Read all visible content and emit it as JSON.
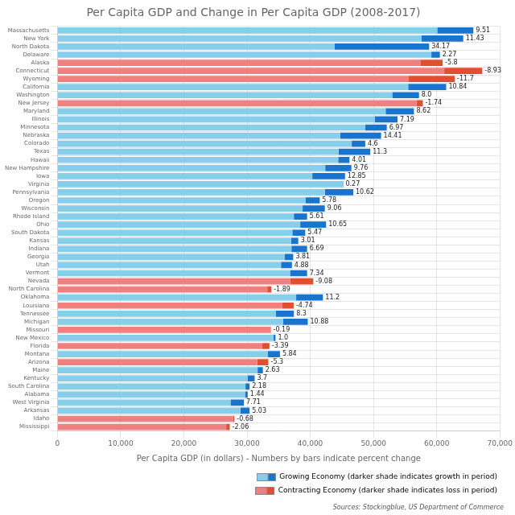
{
  "chart_data": {
    "type": "bar",
    "orientation": "horizontal",
    "stacked": true,
    "title": "Per Capita GDP and Change in Per Capita GDP (2008-2017)",
    "x_label": "Per Capita GDP (in dollars) - Numbers by bars indicate percent change",
    "source": "Sources: Stockingblue, US Department of Commerce",
    "categories": [
      "Massachusetts",
      "New York",
      "North Dakota",
      "Delaware",
      "Alaska",
      "Connecticut",
      "Wyoming",
      "California",
      "Washington",
      "New Jersey",
      "Maryland",
      "Illinois",
      "Minnesota",
      "Nebraska",
      "Colorado",
      "Texas",
      "Hawaii",
      "New Hampshire",
      "Iowa",
      "Virginia",
      "Pennsylvania",
      "Oregon",
      "Wisconsin",
      "Rhode Island",
      "Ohio",
      "South Dakota",
      "Kansas",
      "Indiana",
      "Georgia",
      "Utah",
      "Vermont",
      "Nevada",
      "North Carolina",
      "Oklahoma",
      "Louisiana",
      "Tennessee",
      "Michigan",
      "Missouri",
      "New Mexico",
      "Florida",
      "Montana",
      "Arizona",
      "Maine",
      "Kentucky",
      "South Carolina",
      "Alabama",
      "West Virginia",
      "Arkansas",
      "Idaho",
      "Mississippi"
    ],
    "series": [
      {
        "name": "Growing Economy (darker shade indicates growth in period)",
        "color": "#87CEEB",
        "values": [
          60085.84,
          57614.65,
          43825,
          59157.13,
          null,
          null,
          null,
          55485.38,
          52962.96,
          null,
          51924.14,
          50191.25,
          48705.24,
          44751.33,
          46558.32,
          44474.39,
          44418.81,
          42365.16,
          40319.01,
          45078.29,
          42307,
          39232.37,
          38785.99,
          37401.76,
          38409.4,
          37166.97,
          36986.7,
          37023.15,
          35931.03,
          35373.76,
          36798.96,
          null,
          null,
          37769.78,
          null,
          34533.7,
          35714.29,
          null,
          34158.42,
          null,
          33257.75,
          null,
          31667.15,
          30086.79,
          29751.42,
          29672.71,
          27388.36,
          28944.11,
          null,
          null
        ]
      },
      {
        "color": "#1874CD",
        "values": [
          5714.16,
          6585.35,
          14975,
          1342.87,
          null,
          null,
          null,
          6014.62,
          4237.04,
          null,
          4475.86,
          3608.75,
          3394.76,
          6448.67,
          2141.68,
          5025.61,
          1781.19,
          4134.84,
          5180.99,
          121.71,
          4493,
          2267.63,
          3514.01,
          2098.24,
          4090.6,
          2033.03,
          1113.3,
          2476.85,
          1368.97,
          1726.24,
          2701.04,
          null,
          null,
          4230.22,
          null,
          2866.3,
          3885.71,
          null,
          341.58,
          null,
          1942.25,
          null,
          832.85,
          1113.21,
          648.58,
          427.29,
          2111.64,
          1455.89,
          null,
          null
        ]
      },
      {
        "name": "Contracting Economy (darker shade indicates loss in period)",
        "color": "#F08080",
        "values": [
          null,
          null,
          null,
          null,
          57400,
          61200,
          55500,
          null,
          null,
          56800,
          null,
          null,
          null,
          null,
          null,
          null,
          null,
          null,
          null,
          null,
          null,
          null,
          null,
          null,
          null,
          null,
          null,
          null,
          null,
          null,
          null,
          36800,
          33200,
          null,
          35600,
          null,
          null,
          33700,
          null,
          32400,
          null,
          31600,
          null,
          null,
          null,
          null,
          null,
          null,
          27800,
          26700
        ]
      },
      {
        "color": "#E05030",
        "values": [
          null,
          null,
          null,
          null,
          3534.18,
          6001.05,
          7353.91,
          null,
          null,
          1005.82,
          null,
          null,
          null,
          null,
          null,
          null,
          null,
          null,
          null,
          null,
          null,
          null,
          null,
          null,
          null,
          null,
          null,
          null,
          null,
          null,
          null,
          3675.14,
          639.57,
          null,
          1771.4,
          null,
          null,
          64.15,
          null,
          1136.9,
          null,
          1768.53,
          null,
          null,
          null,
          null,
          null,
          null,
          190.33,
          561.59
        ]
      }
    ],
    "percent_change": [
      9.51,
      11.43,
      34.17,
      2.27,
      -5.8,
      -8.93,
      -11.7,
      10.84,
      8.0,
      -1.74,
      8.62,
      7.19,
      6.97,
      14.41,
      4.6,
      11.3,
      4.01,
      9.76,
      12.85,
      0.27,
      10.62,
      5.78,
      9.06,
      5.61,
      10.65,
      5.47,
      3.01,
      6.69,
      3.81,
      4.88,
      7.34,
      -9.08,
      -1.89,
      11.2,
      -4.74,
      8.3,
      10.88,
      -0.19,
      1.0,
      -3.39,
      5.84,
      -5.3,
      2.63,
      3.7,
      2.18,
      1.44,
      7.71,
      5.03,
      -0.68,
      -2.06
    ],
    "percent_change_labels": [
      "9.51",
      "11.43",
      "34.17",
      "2.27",
      "-5.8",
      "-8.93",
      "-11.7",
      "10.84",
      "8.0",
      "-1.74",
      "8.62",
      "7.19",
      "6.97",
      "14.41",
      "4.6",
      "11.3",
      "4.01",
      "9.76",
      "12.85",
      "0.27",
      "10.62",
      "5.78",
      "9.06",
      "5.61",
      "10.65",
      "5.47",
      "3.01",
      "6.69",
      "3.81",
      "4.88",
      "7.34",
      "-9.08",
      "-1.89",
      "11.2",
      "-4.74",
      "8.3",
      "10.88",
      "-0.19",
      "1.0",
      "-3.39",
      "5.84",
      "-5.3",
      "2.63",
      "3.7",
      "2.18",
      "1.44",
      "7.71",
      "5.03",
      "-0.68",
      "-2.06"
    ],
    "xlim": [
      0,
      70000
    ],
    "xticks": [
      0,
      {
        "value": 10000,
        "label": "10,000"
      },
      {
        "value": 20000,
        "label": "20,000"
      },
      {
        "value": 30000,
        "label": "30,000"
      },
      {
        "value": 40000,
        "label": "40,000"
      },
      {
        "value": 50000,
        "label": "50,000"
      },
      {
        "value": 60000,
        "label": "60,000"
      },
      {
        "value": 70000,
        "label": "70,000"
      }
    ],
    "grid": true,
    "legend": "lower right"
  }
}
